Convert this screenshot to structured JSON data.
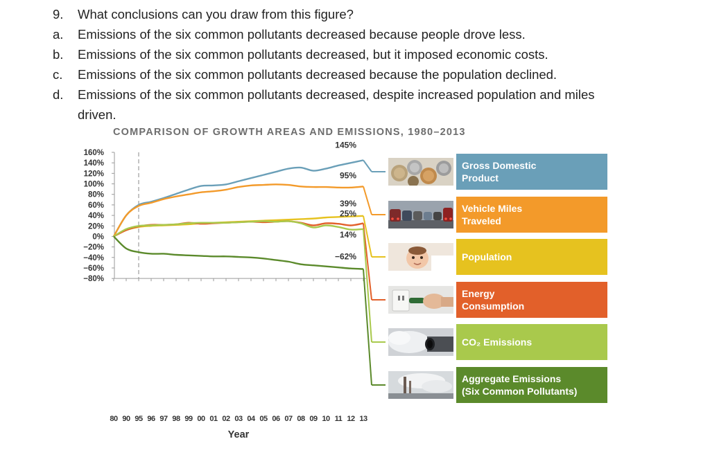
{
  "question": {
    "number": "9.",
    "text": "What conclusions can you draw from this figure?",
    "options": [
      {
        "letter": "a.",
        "lines": [
          "Emissions of the six common pollutants decreased because people drove less."
        ]
      },
      {
        "letter": "b.",
        "lines": [
          "Emissions of the six common pollutants decreased, but it imposed economic costs."
        ]
      },
      {
        "letter": "c.",
        "lines": [
          "Emissions of the six common pollutants decreased because the population declined."
        ]
      },
      {
        "letter": "d.",
        "lines": [
          "Emissions of the six common pollutants decreased, despite increased population and miles",
          "driven."
        ]
      }
    ]
  },
  "chart_data": {
    "type": "line",
    "title": "COMPARISON OF GROWTH AREAS AND EMISSIONS, 1980–2013",
    "xlabel": "Year",
    "ylabel": "",
    "ylim": [
      -80,
      160
    ],
    "y_ticks": [
      160,
      140,
      120,
      100,
      80,
      60,
      40,
      20,
      0,
      -20,
      -40,
      -60,
      -80
    ],
    "y_tick_labels": [
      "160%",
      "140%",
      "120%",
      "100%",
      "80%",
      "60%",
      "40%",
      "20%",
      "0%",
      "−20%",
      "−40%",
      "−60%",
      "−80%"
    ],
    "x_tick_labels": [
      "80",
      "90",
      "95",
      "96",
      "97",
      "98",
      "99",
      "00",
      "01",
      "02",
      "03",
      "04",
      "05",
      "06",
      "07",
      "08",
      "09",
      "10",
      "11",
      "12",
      "13"
    ],
    "grid": false,
    "series": [
      {
        "name": "Gross Domestic Product",
        "color": "#6a9fb8",
        "end_label": "145%",
        "values": [
          0,
          40,
          60,
          66,
          73,
          81,
          89,
          96,
          97,
          99,
          105,
          111,
          117,
          123,
          129,
          131,
          125,
          129,
          135,
          140,
          145
        ]
      },
      {
        "name": "Vehicle Miles Traveled",
        "color": "#f39a2a",
        "end_label": "95%",
        "values": [
          0,
          40,
          58,
          64,
          71,
          76,
          80,
          84,
          86,
          89,
          94,
          97,
          98,
          99,
          98,
          95,
          94,
          94,
          93,
          93,
          95
        ]
      },
      {
        "name": "Population",
        "color": "#e6c21f",
        "end_label": "39%",
        "values": [
          0,
          12,
          18,
          20,
          21,
          22,
          23,
          25,
          26,
          27,
          28,
          29,
          30,
          31,
          32,
          33,
          34,
          36,
          37,
          38,
          39
        ]
      },
      {
        "name": "Energy Consumption",
        "color": "#e2602a",
        "end_label": "25%",
        "values": [
          0,
          12,
          19,
          22,
          22,
          23,
          26,
          24,
          25,
          26,
          27,
          28,
          27,
          28,
          29,
          26,
          21,
          25,
          24,
          21,
          25
        ]
      },
      {
        "name": "CO2 Emissions",
        "color": "#a9c94c",
        "end_label": "14%",
        "values": [
          0,
          14,
          20,
          21,
          22,
          23,
          25,
          26,
          26,
          26,
          27,
          28,
          29,
          28,
          29,
          25,
          17,
          21,
          18,
          13,
          14
        ]
      },
      {
        "name": "Aggregate Emissions (Six Common Pollutants)",
        "color": "#5b8a2b",
        "end_label": "−62%",
        "values": [
          0,
          -23,
          -30,
          -33,
          -33,
          -35,
          -36,
          -37,
          -38,
          -38,
          -39,
          -40,
          -42,
          -45,
          -48,
          -53,
          -55,
          -57,
          -59,
          -61,
          -62
        ]
      }
    ],
    "reference_line": "95",
    "legend": [
      {
        "label": "Gross Domestic\nProduct",
        "color": "#6a9fb8",
        "icon": "coins-photo-icon"
      },
      {
        "label": "Vehicle Miles\nTraveled",
        "color": "#f39a2a",
        "icon": "traffic-photo-icon"
      },
      {
        "label": "Population",
        "color": "#e6c21f",
        "icon": "baby-photo-icon"
      },
      {
        "label": "Energy\nConsumption",
        "color": "#e2602a",
        "icon": "plug-photo-icon"
      },
      {
        "label": "CO₂ Emissions",
        "color": "#a9c94c",
        "icon": "exhaust-photo-icon"
      },
      {
        "label": "Aggregate Emissions\n(Six Common Pollutants)",
        "color": "#5b8a2b",
        "icon": "smokestack-photo-icon"
      }
    ]
  }
}
